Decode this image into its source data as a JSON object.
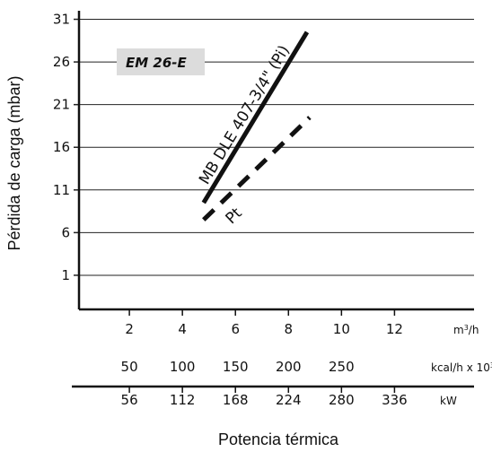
{
  "chart_data": {
    "type": "line",
    "title": "",
    "ylabel": "Pérdida de carga (mbar)",
    "xlabel": "Potencia térmica",
    "ylim": [
      -3,
      32
    ],
    "yticks": [
      1,
      6,
      11,
      16,
      21,
      26,
      31
    ],
    "xlim": [
      0.1,
      15
    ],
    "axes": [
      {
        "ticks": [
          2,
          4,
          6,
          8,
          10,
          12
        ],
        "labels": [
          "2",
          "4",
          "6",
          "8",
          "10",
          "12"
        ],
        "unit_base": "m",
        "unit_sup": "3",
        "unit_tail": "/h"
      },
      {
        "ticks": [
          2,
          4,
          6,
          8,
          10
        ],
        "labels": [
          "50",
          "100",
          "150",
          "200",
          "250"
        ],
        "unit_base": "kcal/h x 10",
        "unit_sup": "3",
        "unit_tail": ""
      },
      {
        "ticks": [
          2,
          4,
          6,
          8,
          10,
          12
        ],
        "labels": [
          "56",
          "112",
          "168",
          "224",
          "280",
          "336"
        ],
        "unit_base": "kW",
        "unit_sup": "",
        "unit_tail": ""
      }
    ],
    "badge": "EM 26-E",
    "series": [
      {
        "name": "MB DLE 407-3/4\" (Pi)",
        "style": "solid",
        "x": [
          4.8,
          8.7
        ],
        "y": [
          9.5,
          29.5
        ]
      },
      {
        "name": "Pt",
        "style": "dashed",
        "x": [
          4.8,
          8.8
        ],
        "y": [
          7.5,
          19.5
        ]
      }
    ],
    "colors": {
      "line": "#111111",
      "grid": "#222222",
      "badge_bg": "#dcdcdc"
    }
  }
}
